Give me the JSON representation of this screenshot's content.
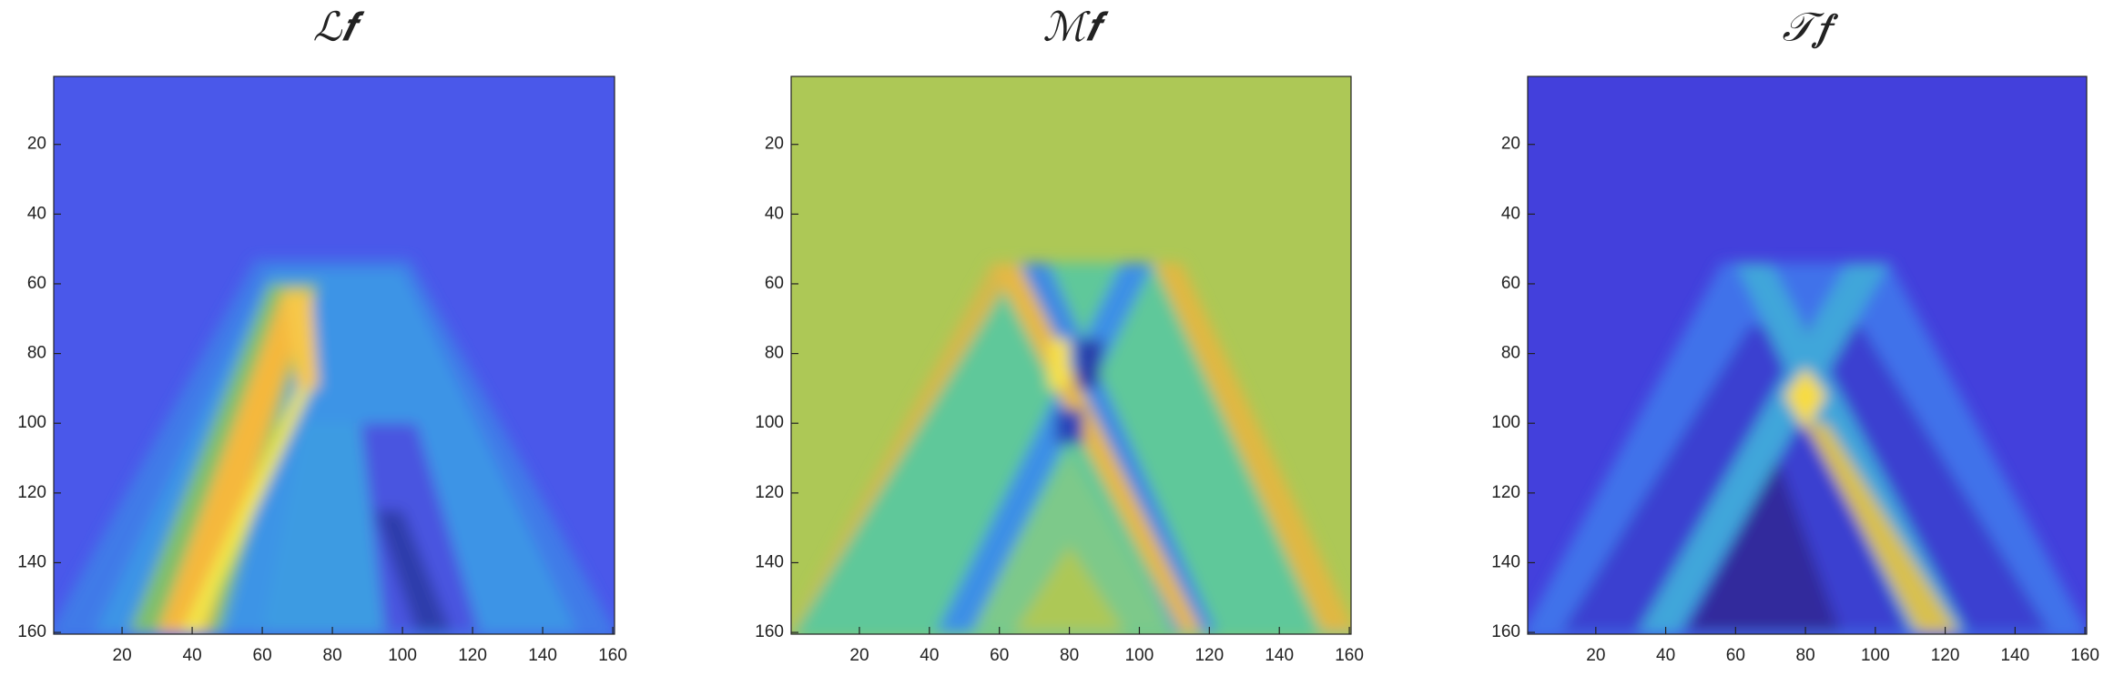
{
  "chart_data": [
    {
      "type": "heatmap",
      "title": "ℒ𝒇",
      "xlim": [
        0.5,
        160.5
      ],
      "ylim": [
        0.5,
        160.5
      ],
      "yreverse": true,
      "xticks": [
        20,
        40,
        60,
        80,
        100,
        120,
        140,
        160
      ],
      "yticks": [
        20,
        40,
        60,
        80,
        100,
        120,
        140,
        160
      ]
    },
    {
      "type": "heatmap",
      "title": "ℳ𝒇",
      "xlim": [
        0.5,
        160.5
      ],
      "ylim": [
        0.5,
        160.5
      ],
      "yreverse": true,
      "xticks": [
        20,
        40,
        60,
        80,
        100,
        120,
        140,
        160
      ],
      "yticks": [
        20,
        40,
        60,
        80,
        100,
        120,
        140,
        160
      ]
    },
    {
      "type": "heatmap",
      "title": "𝒯𝒇",
      "xlim": [
        0.5,
        160.5
      ],
      "ylim": [
        0.5,
        160.5
      ],
      "yreverse": true,
      "xticks": [
        20,
        40,
        60,
        80,
        100,
        120,
        140,
        160
      ],
      "yticks": [
        20,
        40,
        60,
        80,
        100,
        120,
        140,
        160
      ]
    }
  ]
}
